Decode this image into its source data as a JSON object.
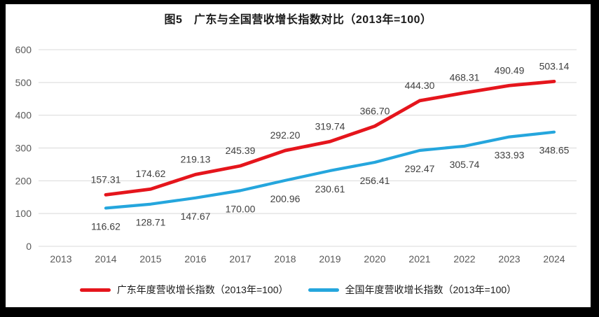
{
  "chart_data": {
    "type": "line",
    "title": "图5　广东与全国营收增长指数对比（2013年=100）",
    "categories": [
      "2013",
      "2014",
      "2015",
      "2016",
      "2017",
      "2018",
      "2019",
      "2020",
      "2021",
      "2022",
      "2023",
      "2024"
    ],
    "series": [
      {
        "key": "guangdong",
        "name": "广东年度营收增长指数（2013年=100）",
        "color": "#e5151c",
        "line_width": 4.8,
        "label_position": "above",
        "values": [
          null,
          157.31,
          174.62,
          219.13,
          245.39,
          292.2,
          319.74,
          366.7,
          444.3,
          468.31,
          490.49,
          503.14
        ]
      },
      {
        "key": "national",
        "name": "全国年度营收增长指数（2013年=100）",
        "color": "#25a6dd",
        "line_width": 4.2,
        "label_position": "below",
        "values": [
          null,
          116.62,
          128.71,
          147.67,
          170.0,
          200.96,
          230.61,
          256.41,
          292.47,
          305.74,
          333.93,
          348.65
        ]
      }
    ],
    "xlabel": "",
    "ylabel": "",
    "ylim": [
      0,
      600
    ],
    "ytick_step": 100,
    "grid": true,
    "grid_color": "#d9d9d9",
    "axis_text_color": "#595959",
    "data_label_color": "#3f3f3f",
    "legend_position": "bottom",
    "frame_color": "#000000",
    "background_color": "#ffffff"
  }
}
